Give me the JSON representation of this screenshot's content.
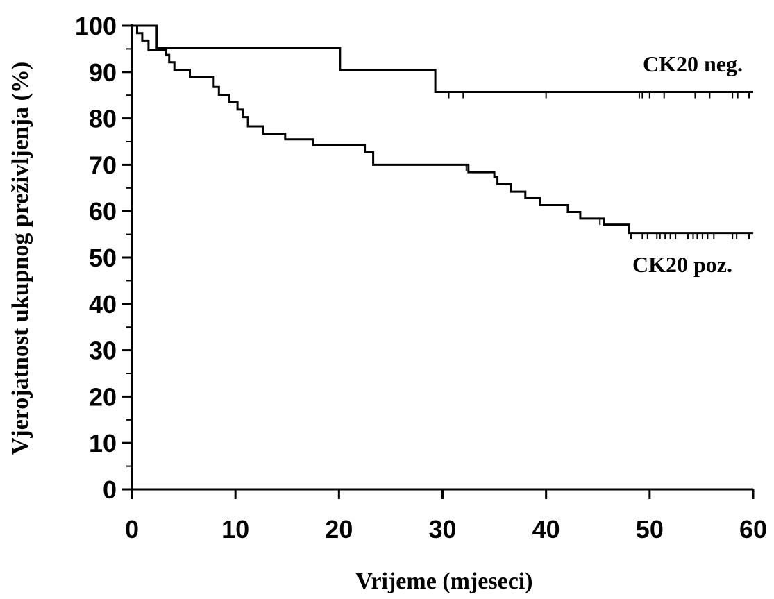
{
  "chart_data": {
    "type": "line",
    "step": true,
    "xlabel": "Vrijeme (mjeseci)",
    "ylabel": "Vjerojatnost ukupnog preživljenja (%)",
    "xlim": [
      0,
      60
    ],
    "ylim": [
      0,
      100
    ],
    "x_ticks": [
      0,
      10,
      20,
      30,
      40,
      50,
      60
    ],
    "x_tick_labels": [
      "0",
      "10",
      "20",
      "30",
      "40",
      "50",
      "60"
    ],
    "y_ticks": [
      0,
      10,
      20,
      30,
      40,
      50,
      60,
      70,
      80,
      90,
      100
    ],
    "y_tick_labels": [
      "0",
      "10",
      "20",
      "30",
      "40",
      "50",
      "60",
      "70",
      "80",
      "90",
      "100"
    ],
    "y_minor_step": 5,
    "grid": false,
    "color": "#000000",
    "series": [
      {
        "name": "CK20 neg.",
        "points": [
          [
            0,
            100
          ],
          [
            2.4,
            100
          ],
          [
            2.4,
            95.2
          ],
          [
            20.1,
            95.2
          ],
          [
            20.1,
            90.5
          ],
          [
            29.3,
            90.5
          ],
          [
            29.3,
            85.7
          ],
          [
            60,
            85.7
          ]
        ],
        "censor_x": [
          30.6,
          32.0,
          40.0,
          49.0,
          49.3,
          50.0,
          51.4,
          54.4,
          55.8,
          58.0,
          58.5,
          59.6
        ]
      },
      {
        "name": "CK20 poz.",
        "points": [
          [
            0,
            100
          ],
          [
            0.5,
            100
          ],
          [
            0.5,
            98.4
          ],
          [
            1.0,
            98.4
          ],
          [
            1.0,
            96.8
          ],
          [
            1.6,
            96.8
          ],
          [
            1.6,
            94.7
          ],
          [
            3.3,
            94.7
          ],
          [
            3.3,
            93.7
          ],
          [
            3.6,
            93.7
          ],
          [
            3.6,
            92.1
          ],
          [
            4.1,
            92.1
          ],
          [
            4.1,
            90.5
          ],
          [
            5.6,
            90.5
          ],
          [
            5.6,
            89.0
          ],
          [
            7.9,
            89.0
          ],
          [
            7.9,
            86.8
          ],
          [
            8.4,
            86.8
          ],
          [
            8.4,
            85.1
          ],
          [
            9.4,
            85.1
          ],
          [
            9.4,
            83.6
          ],
          [
            10.2,
            83.6
          ],
          [
            10.2,
            81.9
          ],
          [
            10.7,
            81.9
          ],
          [
            10.7,
            80.3
          ],
          [
            11.2,
            80.3
          ],
          [
            11.2,
            78.3
          ],
          [
            12.7,
            78.3
          ],
          [
            12.7,
            76.7
          ],
          [
            14.8,
            76.7
          ],
          [
            14.8,
            75.5
          ],
          [
            17.5,
            75.5
          ],
          [
            17.5,
            74.2
          ],
          [
            22.5,
            74.2
          ],
          [
            22.5,
            72.7
          ],
          [
            23.3,
            72.7
          ],
          [
            23.3,
            70.0
          ],
          [
            32.5,
            70.0
          ],
          [
            32.5,
            68.4
          ],
          [
            35.0,
            68.4
          ],
          [
            35.0,
            67.4
          ],
          [
            35.3,
            67.4
          ],
          [
            35.3,
            65.8
          ],
          [
            36.6,
            65.8
          ],
          [
            36.6,
            64.2
          ],
          [
            38.0,
            64.2
          ],
          [
            38.0,
            62.8
          ],
          [
            39.4,
            62.8
          ],
          [
            39.4,
            61.3
          ],
          [
            42.1,
            61.3
          ],
          [
            42.1,
            59.8
          ],
          [
            43.3,
            59.8
          ],
          [
            43.3,
            58.4
          ],
          [
            45.6,
            58.4
          ],
          [
            45.6,
            57.1
          ],
          [
            48.0,
            57.1
          ],
          [
            48.0,
            55.3
          ],
          [
            60,
            55.3
          ]
        ],
        "censor_x": [
          32.3,
          45.2,
          48.2,
          49.3,
          49.8,
          50.7,
          51.0,
          51.5,
          52.0,
          52.5,
          53.7,
          54.2,
          54.6,
          55.1,
          55.6,
          56.2,
          58.0,
          58.4,
          59.6
        ]
      }
    ]
  }
}
